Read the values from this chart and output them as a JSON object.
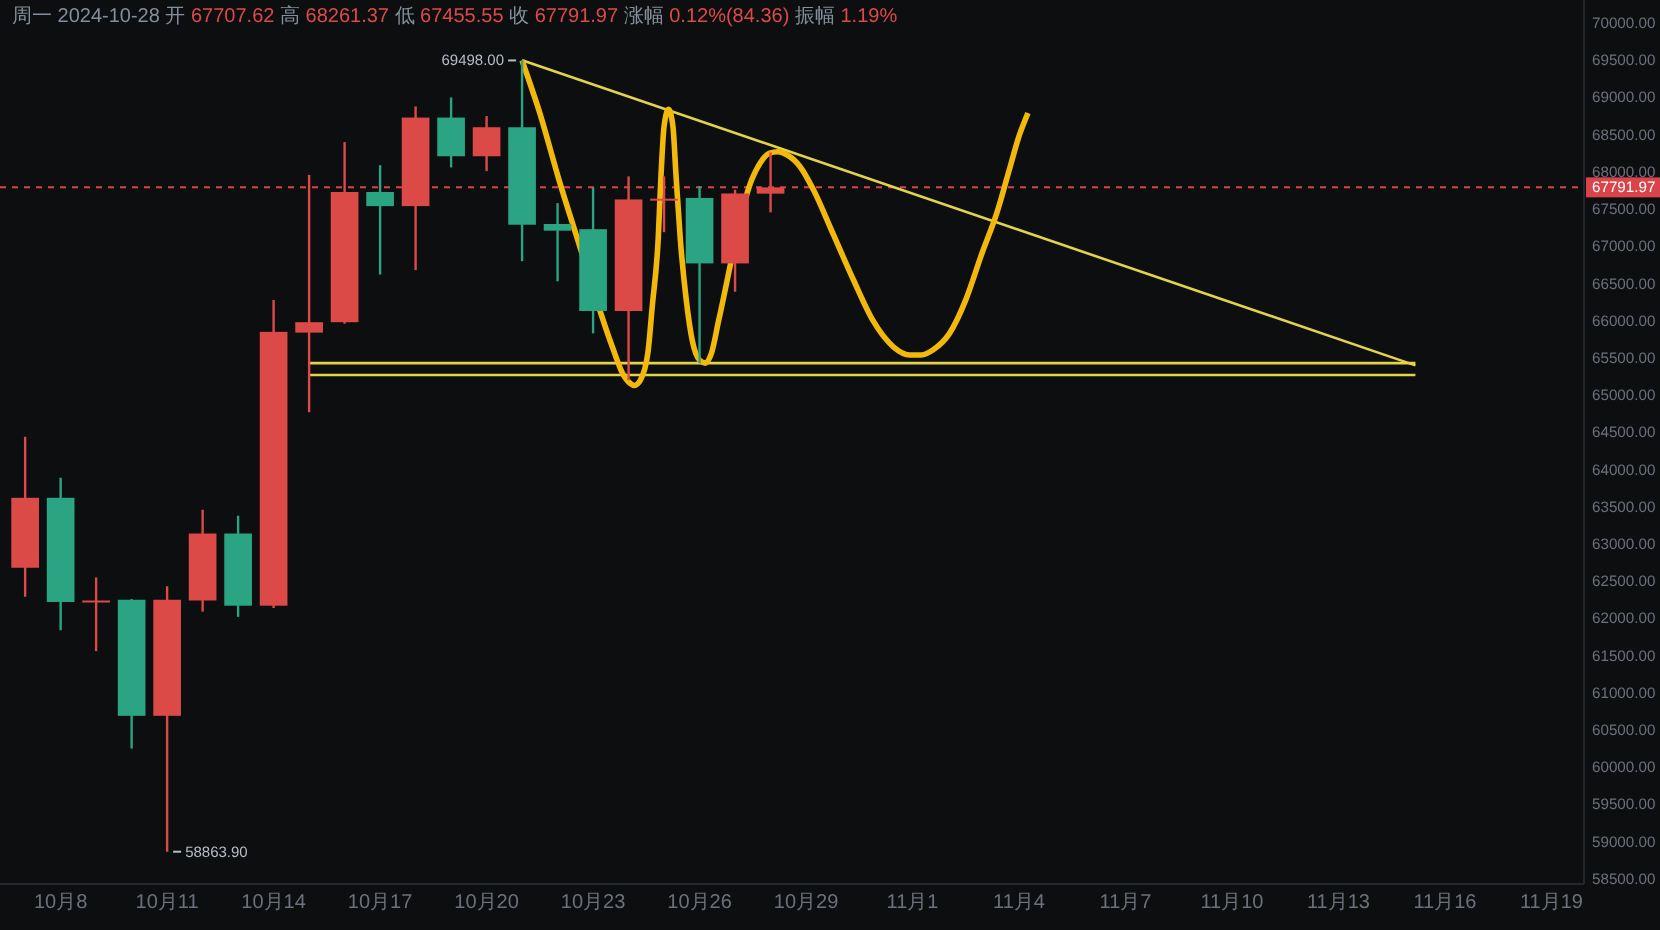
{
  "chart_data": {
    "type": "candlestick",
    "title": "周一 2024-10-28 开 67707.62 高 68261.37 低 67455.55 收 67791.97 涨幅 0.12%(84.36) 振幅 1.19%",
    "x": [
      "2024-10-07",
      "2024-10-08",
      "2024-10-09",
      "2024-10-10",
      "2024-10-11",
      "2024-10-12",
      "2024-10-13",
      "2024-10-14",
      "2024-10-15",
      "2024-10-16",
      "2024-10-17",
      "2024-10-18",
      "2024-10-19",
      "2024-10-20",
      "2024-10-21",
      "2024-10-22",
      "2024-10-23",
      "2024-10-24",
      "2024-10-25",
      "2024-10-26",
      "2024-10-27",
      "2024-10-28"
    ],
    "ohlc": [
      [
        62680,
        64440,
        62290,
        63620
      ],
      [
        63620,
        63890,
        61840,
        62220
      ],
      [
        62220,
        62550,
        61560,
        62240
      ],
      [
        62250,
        62260,
        60250,
        60690
      ],
      [
        60690,
        62430,
        58863.9,
        62250
      ],
      [
        62240,
        63460,
        62090,
        63140
      ],
      [
        63140,
        63380,
        62020,
        62170
      ],
      [
        62170,
        66280,
        62140,
        65850
      ],
      [
        65840,
        67960,
        64770,
        65980
      ],
      [
        65980,
        68400,
        65960,
        67730
      ],
      [
        67730,
        68090,
        66620,
        67540
      ],
      [
        67540,
        68880,
        66680,
        68730
      ],
      [
        68730,
        69000,
        68060,
        68210
      ],
      [
        68210,
        68750,
        68010,
        68600
      ],
      [
        68600,
        69498.0,
        66800,
        67290
      ],
      [
        67300,
        67580,
        66530,
        67210
      ],
      [
        67230,
        67790,
        65830,
        66130
      ],
      [
        66130,
        67940,
        65200,
        67630
      ],
      [
        67620,
        67940,
        67190,
        67640
      ],
      [
        67650,
        67810,
        65430,
        66770
      ],
      [
        66770,
        67760,
        66390,
        67710
      ],
      [
        67707.62,
        68261.37,
        67455.55,
        67791.97
      ]
    ],
    "colors": [
      "#dc4a48",
      "#2aa482",
      "#dc4a48",
      "#2aa482",
      "#dc4a48",
      "#dc4a48",
      "#2aa482",
      "#dc4a48",
      "#dc4a48",
      "#dc4a48",
      "#2aa482",
      "#dc4a48",
      "#2aa482",
      "#dc4a48",
      "#2aa482",
      "#2aa482",
      "#2aa482",
      "#dc4a48",
      "#dc4a48",
      "#2aa482",
      "#dc4a48",
      "#dc4a48"
    ],
    "series": [
      {
        "type": "line",
        "color": "#e3d24b",
        "x": [
          "2024-10-21",
          "2024-11-15T04:00"
        ],
        "values": [
          69500,
          65400
        ]
      },
      {
        "type": "line",
        "color": "#e3d24b",
        "x": [
          "2024-10-15",
          "2024-11-15T04:00"
        ],
        "values": [
          65430,
          65430
        ]
      },
      {
        "type": "line",
        "color": "#e3d24b",
        "x": [
          "2024-10-15",
          "2024-11-15T04:00"
        ],
        "values": [
          65270,
          65270
        ]
      },
      {
        "type": "line",
        "color": "#f3b80c",
        "x": [
          "2024-10-21T00:00",
          "2024-10-21T12:00",
          "2024-10-22T01:00",
          "2024-10-22T12:00",
          "2024-10-23T13:00",
          "2024-10-23T20:00",
          "2024-10-24T01:00",
          "2024-10-24T04:00",
          "2024-10-24T08:00",
          "2024-10-24T13:00",
          "2024-10-24T16:00",
          "2024-10-24T20:00",
          "2024-10-24T22:00",
          "2024-10-25T00:00",
          "2024-10-25T03:00",
          "2024-10-25T06:00",
          "2024-10-25T08:00",
          "2024-10-25T11:00",
          "2024-10-25T15:00",
          "2024-10-25T19:00",
          "2024-10-26T00:00",
          "2024-10-26T04:00",
          "2024-10-26T08:00",
          "2024-10-26T13:00",
          "2024-10-27T11:00",
          "2024-10-27T17:00",
          "2024-10-27T23:00",
          "2024-10-28T05:00",
          "2024-10-28T11:00",
          "2024-10-28T20:00",
          "2024-10-29T05:00",
          "2024-10-29T18:00",
          "2024-10-30T08:00",
          "2024-10-30T21:00",
          "2024-10-31T11:00",
          "2024-10-31T22:00",
          "2024-11-01T06:00",
          "2024-11-01T14:00",
          "2024-11-02T01:00",
          "2024-11-02T12:00",
          "2024-11-02T23:00",
          "2024-11-03T09:00",
          "2024-11-03T18:00",
          "2024-11-04T00:00",
          "2024-11-04T06:00"
        ],
        "values": [
          69500,
          68790,
          67890,
          67190,
          65650,
          65290,
          65160,
          65130,
          65200,
          65560,
          66190,
          67090,
          67980,
          68610,
          68840,
          68610,
          67980,
          67090,
          66280,
          65740,
          65470,
          65430,
          65560,
          66010,
          67880,
          68120,
          68250,
          68270,
          68230,
          68070,
          67760,
          67180,
          66550,
          66010,
          65650,
          65540,
          65540,
          65610,
          65830,
          66280,
          66910,
          67450,
          68070,
          68480,
          68790
        ]
      }
    ],
    "xlim": [
      "2024-10-06T07:00",
      "2024-11-19T22:00"
    ],
    "xticks": [
      {
        "value": "2024-10-08",
        "label": "10月8"
      },
      {
        "value": "2024-10-11",
        "label": "10月11"
      },
      {
        "value": "2024-10-14",
        "label": "10月14"
      },
      {
        "value": "2024-10-17",
        "label": "10月17"
      },
      {
        "value": "2024-10-20",
        "label": "10月20"
      },
      {
        "value": "2024-10-23",
        "label": "10月23"
      },
      {
        "value": "2024-10-26",
        "label": "10月26"
      },
      {
        "value": "2024-10-29",
        "label": "10月29"
      },
      {
        "value": "2024-11-01",
        "label": "11月1"
      },
      {
        "value": "2024-11-04",
        "label": "11月4"
      },
      {
        "value": "2024-11-07",
        "label": "11月7"
      },
      {
        "value": "2024-11-10",
        "label": "11月10"
      },
      {
        "value": "2024-11-13",
        "label": "11月13"
      },
      {
        "value": "2024-11-16",
        "label": "11月16"
      },
      {
        "value": "2024-11-19",
        "label": "11月19"
      }
    ],
    "ylim": [
      58430,
      70310
    ],
    "yticks": [
      {
        "value": 58500,
        "label": "58500.00"
      },
      {
        "value": 59000,
        "label": "59000.00"
      },
      {
        "value": 59500,
        "label": "59500.00"
      },
      {
        "value": 60000,
        "label": "60000.00"
      },
      {
        "value": 60500,
        "label": "60500.00"
      },
      {
        "value": 61000,
        "label": "61000.00"
      },
      {
        "value": 61500,
        "label": "61500.00"
      },
      {
        "value": 62000,
        "label": "62000.00"
      },
      {
        "value": 62500,
        "label": "62500.00"
      },
      {
        "value": 63000,
        "label": "63000.00"
      },
      {
        "value": 63500,
        "label": "63500.00"
      },
      {
        "value": 64000,
        "label": "64000.00"
      },
      {
        "value": 64500,
        "label": "64500.00"
      },
      {
        "value": 65000,
        "label": "65000.00"
      },
      {
        "value": 65500,
        "label": "65500.00"
      },
      {
        "value": 66000,
        "label": "66000.00"
      },
      {
        "value": 66500,
        "label": "66500.00"
      },
      {
        "value": 67000,
        "label": "67000.00"
      },
      {
        "value": 67500,
        "label": "67500.00"
      },
      {
        "value": 68000,
        "label": "68000.00"
      },
      {
        "value": 68500,
        "label": "68500.00"
      },
      {
        "value": 69000,
        "label": "69000.00"
      },
      {
        "value": 69500,
        "label": "69500.00"
      },
      {
        "value": 70000,
        "label": "70000.00"
      }
    ],
    "ref_lines": [
      {
        "axis": "y",
        "value": 67791.97,
        "label": "67791.97",
        "color": "#d9434a",
        "line_style": "dashed"
      }
    ],
    "annotations": [
      {
        "text": "69498.00",
        "x": "2024-10-21",
        "y": 69498.0
      },
      {
        "text": "58863.90",
        "x": "2024-10-11",
        "y": 58863.9
      }
    ],
    "grid": false
  }
}
